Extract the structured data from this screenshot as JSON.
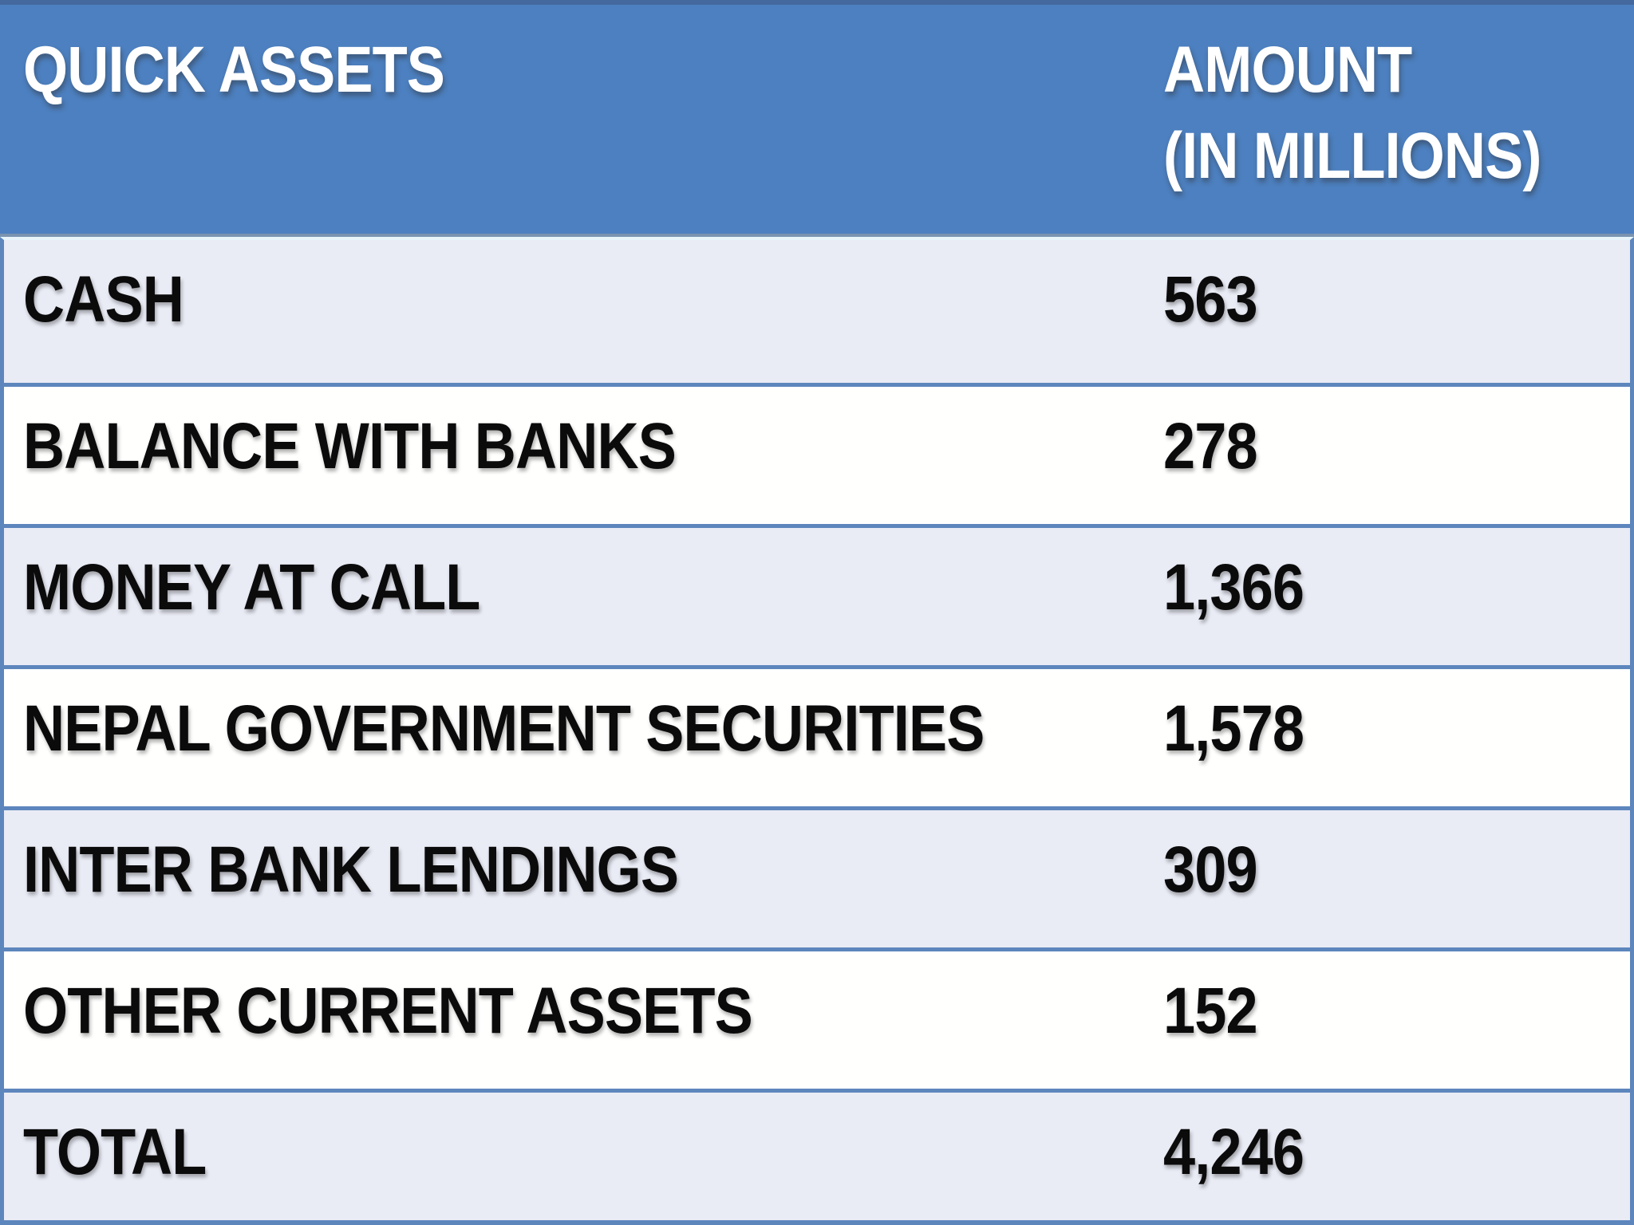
{
  "table": {
    "header": {
      "assets_label": "QUICK ASSETS",
      "amount_label_line1": "AMOUNT",
      "amount_label_line2": "(IN MILLIONS)"
    },
    "rows": [
      {
        "label": "CASH",
        "amount": "563"
      },
      {
        "label": "BALANCE WITH BANKS",
        "amount": "278"
      },
      {
        "label": "MONEY AT CALL",
        "amount": "1,366"
      },
      {
        "label": "NEPAL GOVERNMENT SECURITIES",
        "amount": "1,578"
      },
      {
        "label": "INTER BANK LENDINGS",
        "amount": "309"
      },
      {
        "label": "OTHER CURRENT ASSETS",
        "amount": "152"
      },
      {
        "label": "TOTAL",
        "amount": "4,246"
      }
    ]
  },
  "chart_data": {
    "type": "table",
    "title": "Quick Assets (in millions)",
    "columns": [
      "QUICK ASSETS",
      "AMOUNT (IN MILLIONS)"
    ],
    "rows": [
      [
        "CASH",
        563
      ],
      [
        "BALANCE WITH BANKS",
        278
      ],
      [
        "MONEY AT CALL",
        1366
      ],
      [
        "NEPAL GOVERNMENT SECURITIES",
        1578
      ],
      [
        "INTER BANK LENDINGS",
        309
      ],
      [
        "OTHER CURRENT ASSETS",
        152
      ]
    ],
    "total_row": [
      "TOTAL",
      4246
    ]
  },
  "colors": {
    "header_bg": "#4d80c0",
    "header_text": "#ffffff",
    "row_shade_bg": "#e9ebf5",
    "row_plain_bg": "#fffffe",
    "border_blue": "#5d86bd",
    "header_highlight_line": "#e7f5fb",
    "body_text": "#0b0b0b"
  }
}
